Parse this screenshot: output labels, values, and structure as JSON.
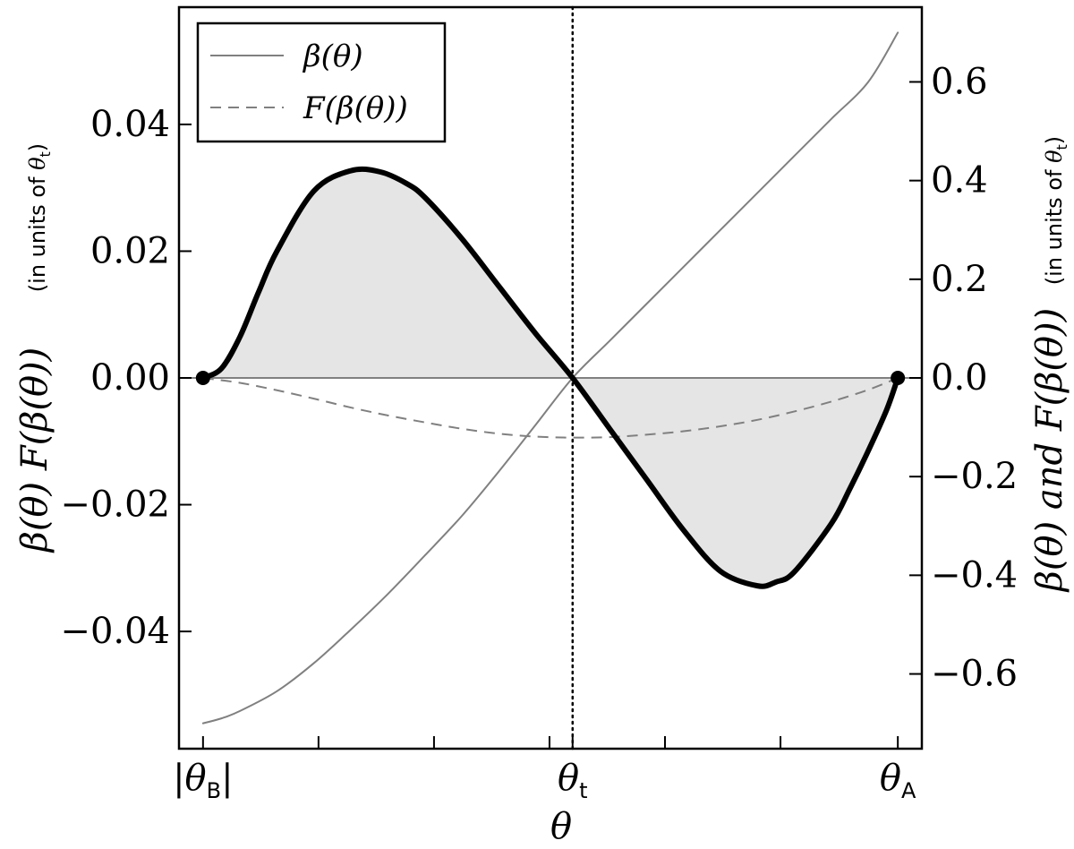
{
  "chart_data": {
    "type": "line",
    "title": "",
    "xlabel": "θ",
    "x_ticks": [
      {
        "value": 0,
        "label": "|θ_B|"
      },
      {
        "value": 1.0,
        "label": "θ_t"
      },
      {
        "value": 1.88,
        "label": "θ_A"
      }
    ],
    "x_minor_ticks": [
      0.3125,
      0.625,
      0.9375,
      1.25,
      1.5625
    ],
    "xlim": [
      -0.065,
      1.945
    ],
    "left_axis": {
      "label": "β(θ) F(β(θ))",
      "unit_note": "(in units of θ_t)",
      "ylim": [
        -0.0585,
        0.0585
      ],
      "ticks": [
        {
          "value": 0.04,
          "label": "0.04"
        },
        {
          "value": 0.02,
          "label": "0.02"
        },
        {
          "value": 0.0,
          "label": "0.00"
        },
        {
          "value": -0.02,
          "label": "−0.02"
        },
        {
          "value": -0.04,
          "label": "−0.04"
        }
      ]
    },
    "right_axis": {
      "label": "β(θ) and F(β(θ))",
      "unit_note": "(in units of θ_t)",
      "ylim": [
        -0.7515,
        0.7515
      ],
      "ticks": [
        {
          "value": 0.6,
          "label": "0.6"
        },
        {
          "value": 0.4,
          "label": "0.4"
        },
        {
          "value": 0.2,
          "label": "0.2"
        },
        {
          "value": 0.0,
          "label": "0.0"
        },
        {
          "value": -0.2,
          "label": "−0.2"
        },
        {
          "value": -0.4,
          "label": "−0.4"
        },
        {
          "value": -0.6,
          "label": "−0.6"
        }
      ]
    },
    "series": [
      {
        "name": "β(θ)",
        "axis": "right",
        "style": "solid",
        "color": "#808080",
        "x": [
          0,
          0.05,
          0.1,
          0.2,
          0.3,
          0.4,
          0.5,
          0.6,
          0.7,
          0.8,
          0.9,
          1.0,
          1.1,
          1.2,
          1.3,
          1.4,
          1.5,
          1.6,
          1.7,
          1.8,
          1.88
        ],
        "y": [
          -0.7,
          -0.69,
          -0.675,
          -0.635,
          -0.578,
          -0.51,
          -0.438,
          -0.36,
          -0.28,
          -0.19,
          -0.095,
          0.0,
          0.075,
          0.15,
          0.225,
          0.3,
          0.375,
          0.45,
          0.525,
          0.6,
          0.7
        ]
      },
      {
        "name": "F(β(θ))",
        "axis": "right",
        "style": "dashed",
        "color": "#808080",
        "x": [
          0,
          0.1,
          0.2,
          0.3,
          0.4,
          0.5,
          0.6,
          0.7,
          0.8,
          0.9,
          1.0,
          1.1,
          1.2,
          1.3,
          1.4,
          1.5,
          1.6,
          1.7,
          1.8,
          1.88
        ],
        "y": [
          0.0,
          -0.01,
          -0.025,
          -0.042,
          -0.06,
          -0.076,
          -0.09,
          -0.103,
          -0.113,
          -0.119,
          -0.121,
          -0.12,
          -0.115,
          -0.108,
          -0.098,
          -0.085,
          -0.068,
          -0.048,
          -0.024,
          0.0
        ]
      },
      {
        "name": "β(θ) F(β(θ))",
        "axis": "left",
        "style": "thick",
        "color": "#000000",
        "filled": true,
        "x": [
          0,
          0.05,
          0.1,
          0.15,
          0.2,
          0.3,
          0.4,
          0.48,
          0.55,
          0.6,
          0.7,
          0.8,
          0.9,
          1.0,
          1.1,
          1.2,
          1.3,
          1.4,
          1.5,
          1.55,
          1.6,
          1.7,
          1.75,
          1.8,
          1.85,
          1.88
        ],
        "y": [
          0.0,
          0.0015,
          0.0065,
          0.0135,
          0.02,
          0.0295,
          0.0327,
          0.0325,
          0.0307,
          0.0285,
          0.022,
          0.0145,
          0.007,
          0.0,
          -0.008,
          -0.016,
          -0.024,
          -0.0305,
          -0.0328,
          -0.0322,
          -0.0306,
          -0.023,
          -0.0175,
          -0.0115,
          -0.005,
          0.0
        ]
      }
    ],
    "endpoints": [
      {
        "x": 0,
        "y": 0.0
      },
      {
        "x": 1.88,
        "y": 0.0
      }
    ],
    "reference_lines": [
      {
        "type": "vertical",
        "x": 1.0,
        "style": "dotted"
      },
      {
        "type": "horizontal",
        "y": 0.0,
        "style": "solid"
      }
    ],
    "legend": {
      "placement": "top-left",
      "entries": [
        {
          "label": "β(θ)",
          "style": "solid"
        },
        {
          "label": "F(β(θ))",
          "style": "dashed"
        }
      ]
    },
    "grid": false,
    "colors": {
      "fill": "#e5e5e5",
      "thin_line": "#808080",
      "thick_line": "#000000"
    }
  }
}
